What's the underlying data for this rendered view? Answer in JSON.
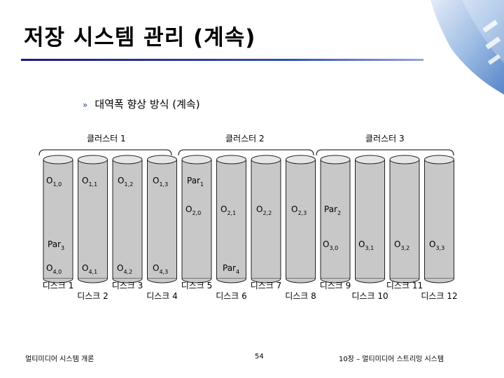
{
  "slide": {
    "title": "저장 시스템 관리 (계속)",
    "bullet": "대역폭 향상 방식 (계속)",
    "bullet_marker": "»"
  },
  "clusters": [
    "클러스터 1",
    "클러스터 2",
    "클러스터 3"
  ],
  "disks": [
    "디스크 1",
    "디스크 2",
    "디스크 3",
    "디스크 4",
    "디스크 5",
    "디스크 6",
    "디스크 7",
    "디스크 8",
    "디스크 9",
    "디스크 10",
    "디스크 11",
    "디스크 12"
  ],
  "objects": {
    "row1": [
      [
        "O",
        "1,0"
      ],
      [
        "O",
        "1,1"
      ],
      [
        "O",
        "1,2"
      ],
      [
        "O",
        "1,3"
      ],
      [
        "Par",
        "1"
      ]
    ],
    "row2": [
      [
        "O",
        "2,0"
      ],
      [
        "O",
        "2,1"
      ],
      [
        "O",
        "2,2"
      ],
      [
        "O",
        "2,3"
      ],
      [
        "Par",
        "2"
      ]
    ],
    "row3": [
      [
        "Par",
        "3"
      ],
      [
        "O",
        "3,0"
      ],
      [
        "O",
        "3,1"
      ],
      [
        "O",
        "3,2"
      ],
      [
        "O",
        "3,3"
      ]
    ],
    "row4": [
      [
        "O",
        "4,0"
      ],
      [
        "O",
        "4,1"
      ],
      [
        "O",
        "4,2"
      ],
      [
        "O",
        "4,3"
      ],
      [
        "Par",
        "4"
      ]
    ]
  },
  "footer": {
    "left": "멀티미디어 시스템 개론",
    "page": "54",
    "right": "10장 – 멀티미디어 스트리밍 시스템"
  },
  "colors": {
    "disk_fill": "#c8c8c8",
    "disk_top": "#e6e6e6",
    "title_rule": "#1a1a80"
  }
}
